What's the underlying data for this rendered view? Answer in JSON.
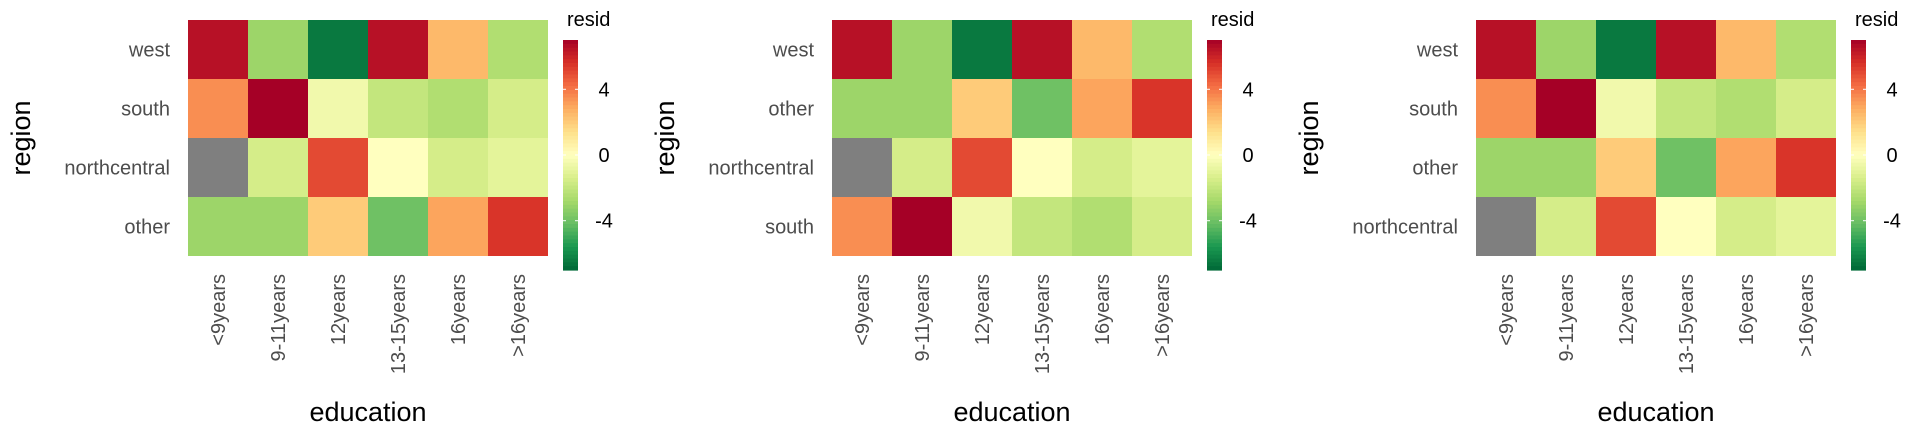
{
  "chart_data": [
    {
      "type": "heatmap",
      "xlabel": "education",
      "ylabel": "region",
      "x_categories": [
        "<9years",
        "9-11years",
        "12years",
        "13-15years",
        "16years",
        ">16years"
      ],
      "y_categories": [
        "west",
        "south",
        "northcentral",
        "other"
      ],
      "values": [
        [
          6.5,
          -3.0,
          -6.5,
          6.5,
          2.5,
          -2.5
        ],
        [
          3.5,
          7.0,
          -0.5,
          -2.0,
          -2.5,
          -1.5
        ],
        [
          null,
          -1.5,
          5.0,
          0.0,
          -1.5,
          -1.0
        ],
        [
          -3.0,
          -3.0,
          2.0,
          -4.0,
          3.0,
          5.5
        ]
      ],
      "legend": {
        "title": "resid",
        "ticks": [
          4,
          0,
          -4
        ],
        "range": [
          -7,
          7
        ],
        "position": "right"
      },
      "na_color": "#7f7f7f"
    },
    {
      "type": "heatmap",
      "xlabel": "education",
      "ylabel": "region",
      "x_categories": [
        "<9years",
        "9-11years",
        "12years",
        "13-15years",
        "16years",
        ">16years"
      ],
      "y_categories": [
        "west",
        "other",
        "northcentral",
        "south"
      ],
      "values": [
        [
          6.5,
          -3.0,
          -6.5,
          6.5,
          2.5,
          -2.5
        ],
        [
          -3.0,
          -3.0,
          2.0,
          -4.0,
          3.0,
          5.5
        ],
        [
          null,
          -1.5,
          5.0,
          0.0,
          -1.5,
          -1.0
        ],
        [
          3.5,
          7.0,
          -0.5,
          -2.0,
          -2.5,
          -1.5
        ]
      ],
      "legend": {
        "title": "resid",
        "ticks": [
          4,
          0,
          -4
        ],
        "range": [
          -7,
          7
        ],
        "position": "right"
      },
      "na_color": "#7f7f7f"
    },
    {
      "type": "heatmap",
      "xlabel": "education",
      "ylabel": "region",
      "x_categories": [
        "<9years",
        "9-11years",
        "12years",
        "13-15years",
        "16years",
        ">16years"
      ],
      "y_categories": [
        "west",
        "south",
        "other",
        "northcentral"
      ],
      "values": [
        [
          6.5,
          -3.0,
          -6.5,
          6.5,
          2.5,
          -2.5
        ],
        [
          3.5,
          7.0,
          -0.5,
          -2.0,
          -2.5,
          -1.5
        ],
        [
          -3.0,
          -3.0,
          2.0,
          -4.0,
          3.0,
          5.5
        ],
        [
          null,
          -1.5,
          5.0,
          0.0,
          -1.5,
          -1.0
        ]
      ],
      "legend": {
        "title": "resid",
        "ticks": [
          4,
          0,
          -4
        ],
        "range": [
          -7,
          7
        ],
        "position": "right"
      },
      "na_color": "#7f7f7f"
    }
  ],
  "colors": {
    "scale": [
      "#006837",
      "#1a9850",
      "#66bd63",
      "#a6d96a",
      "#d9ef8b",
      "#ffffbf",
      "#fee08b",
      "#fdae61",
      "#f46d43",
      "#d73027",
      "#a50026"
    ]
  }
}
